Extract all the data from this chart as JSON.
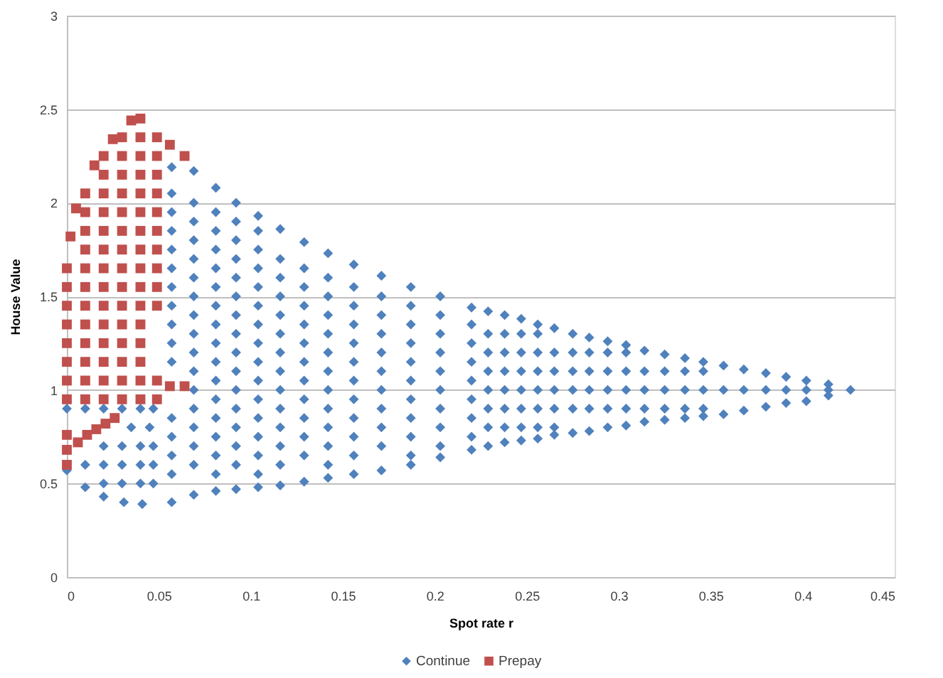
{
  "chart_data": {
    "type": "scatter",
    "xlabel": "Spot rate r",
    "ylabel": "House Value",
    "xlim": [
      0,
      0.45
    ],
    "xticks": [
      0,
      0.05,
      0.1,
      0.15,
      0.2,
      0.25,
      0.3,
      0.35,
      0.4,
      0.45
    ],
    "ylim": [
      0,
      3
    ],
    "yticks": [
      0,
      0.5,
      1,
      1.5,
      2,
      2.5,
      3
    ],
    "grid": "y",
    "legend": "bottom",
    "series": [
      {
        "name": "Continue",
        "color": "#4f81bd",
        "marker": "diamond",
        "x": [
          0.426,
          0.414,
          0.414,
          0.414,
          0.402,
          0.402,
          0.402,
          0.391,
          0.391,
          0.391,
          0.38,
          0.38,
          0.38,
          0.368,
          0.368,
          0.368,
          0.357,
          0.357,
          0.357,
          0.346,
          0.346,
          0.346,
          0.346,
          0.346,
          0.336,
          0.336,
          0.336,
          0.336,
          0.336,
          0.325,
          0.325,
          0.325,
          0.325,
          0.325,
          0.314,
          0.314,
          0.314,
          0.314,
          0.314,
          0.304,
          0.304,
          0.304,
          0.304,
          0.304,
          0.304,
          0.294,
          0.294,
          0.294,
          0.294,
          0.294,
          0.294,
          0.284,
          0.284,
          0.284,
          0.284,
          0.284,
          0.284,
          0.275,
          0.275,
          0.275,
          0.275,
          0.275,
          0.275,
          0.265,
          0.265,
          0.265,
          0.265,
          0.265,
          0.265,
          0.265,
          0.256,
          0.256,
          0.256,
          0.256,
          0.256,
          0.256,
          0.256,
          0.256,
          0.247,
          0.247,
          0.247,
          0.247,
          0.247,
          0.247,
          0.247,
          0.247,
          0.238,
          0.238,
          0.238,
          0.238,
          0.238,
          0.238,
          0.238,
          0.238,
          0.229,
          0.229,
          0.229,
          0.229,
          0.229,
          0.229,
          0.229,
          0.229,
          0.22,
          0.22,
          0.22,
          0.22,
          0.22,
          0.22,
          0.22,
          0.22,
          0.22,
          0.203,
          0.203,
          0.203,
          0.203,
          0.203,
          0.203,
          0.203,
          0.203,
          0.203,
          0.203,
          0.187,
          0.187,
          0.187,
          0.187,
          0.187,
          0.187,
          0.187,
          0.187,
          0.187,
          0.187,
          0.187,
          0.171,
          0.171,
          0.171,
          0.171,
          0.171,
          0.171,
          0.171,
          0.171,
          0.171,
          0.171,
          0.171,
          0.156,
          0.156,
          0.156,
          0.156,
          0.156,
          0.156,
          0.156,
          0.156,
          0.156,
          0.156,
          0.156,
          0.156,
          0.142,
          0.142,
          0.142,
          0.142,
          0.142,
          0.142,
          0.142,
          0.142,
          0.142,
          0.142,
          0.142,
          0.142,
          0.142,
          0.129,
          0.129,
          0.129,
          0.129,
          0.129,
          0.129,
          0.129,
          0.129,
          0.129,
          0.129,
          0.129,
          0.129,
          0.129,
          0.116,
          0.116,
          0.116,
          0.116,
          0.116,
          0.116,
          0.116,
          0.116,
          0.116,
          0.116,
          0.116,
          0.116,
          0.116,
          0.116,
          0.104,
          0.104,
          0.104,
          0.104,
          0.104,
          0.104,
          0.104,
          0.104,
          0.104,
          0.104,
          0.104,
          0.104,
          0.104,
          0.104,
          0.104,
          0.104,
          0.092,
          0.092,
          0.092,
          0.092,
          0.092,
          0.092,
          0.092,
          0.092,
          0.092,
          0.092,
          0.092,
          0.092,
          0.092,
          0.092,
          0.092,
          0.092,
          0.081,
          0.081,
          0.081,
          0.081,
          0.081,
          0.081,
          0.081,
          0.081,
          0.081,
          0.081,
          0.081,
          0.081,
          0.081,
          0.081,
          0.081,
          0.081,
          0.081,
          0.069,
          0.069,
          0.069,
          0.069,
          0.069,
          0.069,
          0.069,
          0.069,
          0.069,
          0.069,
          0.069,
          0.069,
          0.069,
          0.069,
          0.069,
          0.069,
          0.069,
          0.057,
          0.057,
          0.057,
          0.057,
          0.057,
          0.057,
          0.057,
          0.057,
          0.057,
          0.057,
          0.057,
          0.057,
          0.057,
          0.057,
          0.057,
          0.057,
          0,
          0.01,
          0.02,
          0.031,
          0.041,
          0,
          0.01,
          0.02,
          0.03,
          0.04,
          0.047,
          0.02,
          0.03,
          0.04,
          0.047,
          0.01,
          0.02,
          0.03,
          0.04,
          0.047,
          0.02,
          0.03,
          0.04,
          0.047,
          0.035,
          0.045
        ],
        "values": [
          1.0,
          1.03,
          1.0,
          0.97,
          1.05,
          1.0,
          0.94,
          1.07,
          1.0,
          0.93,
          1.09,
          1.0,
          0.91,
          1.11,
          1.0,
          0.89,
          1.13,
          1.0,
          0.87,
          1.15,
          1.1,
          1.0,
          0.9,
          0.86,
          1.17,
          1.1,
          1.0,
          0.9,
          0.85,
          1.19,
          1.1,
          1.0,
          0.9,
          0.84,
          1.21,
          1.1,
          1.0,
          0.9,
          0.83,
          1.24,
          1.2,
          1.1,
          1.0,
          0.9,
          0.81,
          1.26,
          1.2,
          1.1,
          1.0,
          0.9,
          0.8,
          1.28,
          1.2,
          1.1,
          1.0,
          0.9,
          0.78,
          1.3,
          1.2,
          1.1,
          1.0,
          0.9,
          0.77,
          1.33,
          1.2,
          1.1,
          1.0,
          0.9,
          0.8,
          0.76,
          1.35,
          1.3,
          1.2,
          1.1,
          1.0,
          0.9,
          0.8,
          0.74,
          1.38,
          1.3,
          1.2,
          1.1,
          1.0,
          0.9,
          0.8,
          0.73,
          1.4,
          1.3,
          1.2,
          1.1,
          1.0,
          0.9,
          0.8,
          0.72,
          1.42,
          1.3,
          1.2,
          1.1,
          1.0,
          0.9,
          0.8,
          0.7,
          1.44,
          1.35,
          1.25,
          1.15,
          1.05,
          0.95,
          0.85,
          0.75,
          0.68,
          1.5,
          1.4,
          1.3,
          1.2,
          1.1,
          1.0,
          0.9,
          0.8,
          0.7,
          0.64,
          1.55,
          1.45,
          1.35,
          1.25,
          1.15,
          1.05,
          0.95,
          0.85,
          0.75,
          0.65,
          0.6,
          1.61,
          1.5,
          1.4,
          1.3,
          1.2,
          1.1,
          1.0,
          0.9,
          0.8,
          0.7,
          0.57,
          1.67,
          1.55,
          1.45,
          1.35,
          1.25,
          1.15,
          1.05,
          0.95,
          0.85,
          0.75,
          0.65,
          0.55,
          1.73,
          1.6,
          1.5,
          1.4,
          1.3,
          1.2,
          1.1,
          1.0,
          0.9,
          0.8,
          0.7,
          0.6,
          0.53,
          1.79,
          1.65,
          1.55,
          1.45,
          1.35,
          1.25,
          1.15,
          1.05,
          0.95,
          0.85,
          0.75,
          0.65,
          0.51,
          1.86,
          1.7,
          1.6,
          1.5,
          1.4,
          1.3,
          1.2,
          1.1,
          1.0,
          0.9,
          0.8,
          0.7,
          0.6,
          0.49,
          1.93,
          1.85,
          1.75,
          1.65,
          1.55,
          1.45,
          1.35,
          1.25,
          1.15,
          1.05,
          0.95,
          0.85,
          0.75,
          0.65,
          0.55,
          0.48,
          2.0,
          1.9,
          1.8,
          1.7,
          1.6,
          1.5,
          1.4,
          1.3,
          1.2,
          1.1,
          1.0,
          0.9,
          0.8,
          0.7,
          0.6,
          0.47,
          2.08,
          1.95,
          1.85,
          1.75,
          1.65,
          1.55,
          1.45,
          1.35,
          1.25,
          1.15,
          1.05,
          0.95,
          0.85,
          0.75,
          0.65,
          0.55,
          0.46,
          2.17,
          2.0,
          1.9,
          1.8,
          1.7,
          1.6,
          1.5,
          1.4,
          1.3,
          1.2,
          1.1,
          1.0,
          0.9,
          0.8,
          0.7,
          0.6,
          0.44,
          2.19,
          2.05,
          1.95,
          1.85,
          1.75,
          1.65,
          1.55,
          1.45,
          1.35,
          1.25,
          1.15,
          0.85,
          0.75,
          0.65,
          0.55,
          0.4,
          0.57,
          0.48,
          0.43,
          0.4,
          0.39,
          0.9,
          0.9,
          0.9,
          0.9,
          0.9,
          0.9,
          0.5,
          0.5,
          0.5,
          0.5,
          0.6,
          0.6,
          0.6,
          0.6,
          0.6,
          0.7,
          0.7,
          0.7,
          0.7,
          0.8,
          0.8
        ]
      },
      {
        "name": "Prepay",
        "color": "#c0504d",
        "marker": "square",
        "x": [
          0,
          0,
          0,
          0,
          0,
          0,
          0,
          0,
          0.01,
          0.01,
          0.01,
          0.01,
          0.01,
          0.01,
          0.01,
          0.01,
          0.01,
          0.01,
          0.01,
          0.01,
          0.02,
          0.02,
          0.02,
          0.02,
          0.02,
          0.02,
          0.02,
          0.02,
          0.02,
          0.02,
          0.02,
          0.02,
          0.02,
          0.02,
          0.03,
          0.03,
          0.03,
          0.03,
          0.03,
          0.03,
          0.03,
          0.03,
          0.03,
          0.03,
          0.03,
          0.03,
          0.03,
          0.03,
          0.03,
          0.04,
          0.04,
          0.04,
          0.04,
          0.04,
          0.04,
          0.04,
          0.04,
          0.04,
          0.04,
          0.04,
          0.04,
          0.04,
          0.04,
          0.04,
          0.04,
          0.049,
          0.049,
          0.049,
          0.049,
          0.049,
          0.049,
          0.049,
          0.049,
          0.049,
          0.049,
          0.049,
          0.049,
          0.056,
          0.064,
          0.056,
          0.064,
          0.002,
          0.005,
          0.015,
          0.025,
          0.035,
          0,
          0,
          0,
          0.006,
          0.011,
          0.016,
          0.021,
          0.026
        ],
        "values": [
          1.65,
          1.55,
          1.45,
          1.35,
          1.25,
          1.15,
          1.05,
          0.95,
          2.05,
          1.95,
          1.85,
          1.75,
          1.65,
          1.55,
          1.45,
          1.35,
          1.25,
          1.15,
          1.05,
          0.95,
          2.25,
          2.15,
          2.05,
          1.95,
          1.85,
          1.75,
          1.65,
          1.55,
          1.45,
          1.35,
          1.25,
          1.15,
          1.05,
          0.95,
          2.35,
          2.25,
          2.15,
          2.05,
          1.95,
          1.85,
          1.75,
          1.65,
          1.55,
          1.45,
          1.35,
          1.25,
          1.15,
          1.05,
          0.95,
          2.45,
          2.35,
          2.25,
          2.15,
          2.05,
          1.95,
          1.85,
          1.75,
          1.65,
          1.55,
          1.45,
          1.35,
          1.25,
          1.15,
          1.05,
          0.95,
          2.35,
          2.25,
          2.15,
          2.05,
          1.95,
          1.85,
          1.75,
          1.65,
          1.55,
          1.45,
          1.05,
          0.95,
          1.02,
          1.02,
          2.31,
          2.25,
          1.82,
          1.97,
          2.2,
          2.34,
          2.44,
          0.6,
          0.68,
          0.76,
          0.72,
          0.76,
          0.79,
          0.82,
          0.85
        ]
      }
    ]
  }
}
